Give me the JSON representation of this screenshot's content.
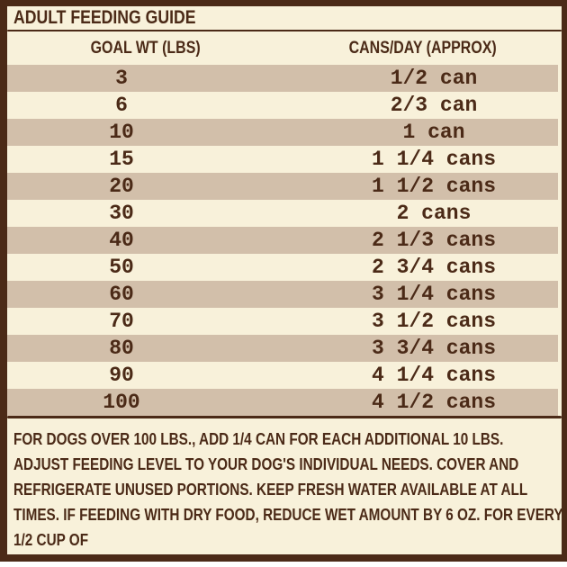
{
  "title": "ADULT FEEDING GUIDE",
  "table": {
    "columns": [
      "GOAL WT (LBS)",
      "CANS/DAY (APPROX)"
    ],
    "rows": [
      {
        "weight": "3",
        "cans": "1/2 can"
      },
      {
        "weight": "6",
        "cans": "2/3 can"
      },
      {
        "weight": "10",
        "cans": "1 can"
      },
      {
        "weight": "15",
        "cans": "1 1/4 cans"
      },
      {
        "weight": "20",
        "cans": "1 1/2 cans"
      },
      {
        "weight": "30",
        "cans": "2 cans"
      },
      {
        "weight": "40",
        "cans": "2 1/3 cans"
      },
      {
        "weight": "50",
        "cans": "2 3/4 cans"
      },
      {
        "weight": "60",
        "cans": "3 1/4 cans"
      },
      {
        "weight": "70",
        "cans": "3 1/2 cans"
      },
      {
        "weight": "80",
        "cans": "3 3/4 cans"
      },
      {
        "weight": "90",
        "cans": "4 1/4 cans"
      },
      {
        "weight": "100",
        "cans": "4 1/2 cans"
      }
    ]
  },
  "footer": {
    "lines": [
      "FOR DOGS OVER 100 LBS., ADD 1/4 CAN FOR EACH ADDITIONAL 10 LBS.",
      "ADJUST FEEDING LEVEL TO YOUR DOG'S INDIVIDUAL NEEDS. COVER AND",
      "REFRIGERATE UNUSED PORTIONS. KEEP FRESH WATER AVAILABLE AT ALL",
      "TIMES. IF FEEDING WITH DRY FOOD, REDUCE WET AMOUNT BY 6 OZ. FOR EVERY",
      "1/2 CUP OF"
    ]
  },
  "colors": {
    "ink": "#4b2a17",
    "cream": "#f8f1da",
    "stripe": "#d2bfaa",
    "outer": "#ffffff"
  }
}
